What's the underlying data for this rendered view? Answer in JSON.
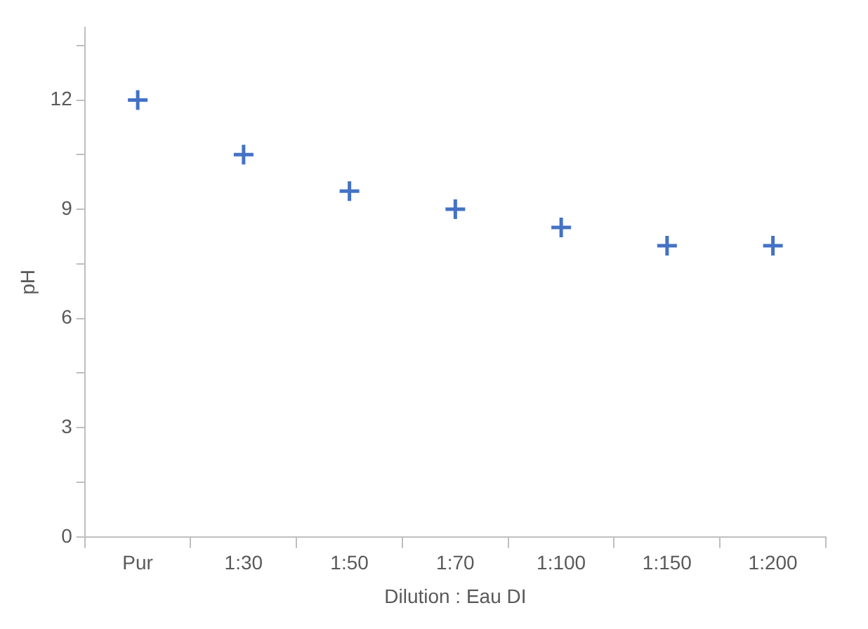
{
  "chart_data": {
    "type": "scatter",
    "xlabel": "Dilution : Eau DI",
    "ylabel": "pH",
    "categories": [
      "Pur",
      "1:30",
      "1:50",
      "1:70",
      "1:100",
      "1:150",
      "1:200"
    ],
    "series": [
      {
        "color": "#4472c4",
        "values": [
          12,
          10.5,
          9.5,
          9,
          8.5,
          8,
          8
        ]
      }
    ],
    "ylim": [
      0,
      14
    ],
    "yticks": [
      0,
      {
        "value": 1.5,
        "label": null
      },
      3,
      {
        "value": 4.5,
        "label": null
      },
      6,
      {
        "value": 7.5,
        "label": null
      },
      9,
      {
        "value": 10.5,
        "label": null
      },
      12,
      {
        "value": 13.5,
        "label": null
      }
    ],
    "marker": "cross",
    "grid": false,
    "legend": false
  }
}
